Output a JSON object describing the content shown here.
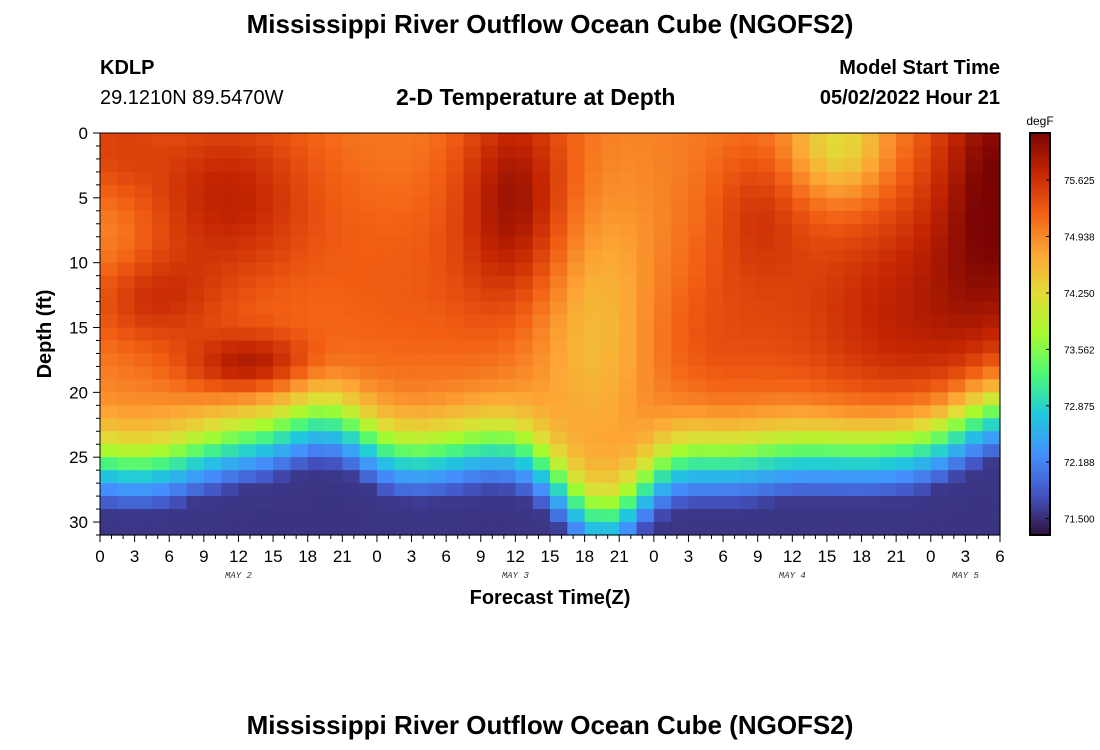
{
  "header": {
    "title": "Mississippi River Outflow Ocean Cube (NGOFS2)",
    "station_id": "KDLP",
    "station_coords": "29.1210N  89.5470W",
    "plot_title": "2-D Temperature at Depth",
    "model_start_label": "Model Start Time",
    "model_start_value": "05/02/2022 Hour 21"
  },
  "footer": {
    "title": "Mississippi River Outflow Ocean Cube (NGOFS2)"
  },
  "chart_data": {
    "type": "heatmap",
    "xlabel": "Forecast Time(Z)",
    "ylabel": "Depth (ft)",
    "x_tick_labels": [
      "0",
      "3",
      "6",
      "9",
      "12",
      "15",
      "18",
      "21",
      "0",
      "3",
      "6",
      "9",
      "12",
      "15",
      "18",
      "21",
      "0",
      "3",
      "6",
      "9",
      "12",
      "15",
      "18",
      "21",
      "0",
      "3",
      "6"
    ],
    "x_range_hours": [
      0,
      78
    ],
    "y_range_ft": [
      0,
      31
    ],
    "y_reversed": true,
    "y_ticks": [
      0,
      5,
      10,
      15,
      20,
      25,
      30
    ],
    "date_labels": [
      {
        "text": "MAY 2",
        "hour": 12
      },
      {
        "text": "MAY 3",
        "hour": 36
      },
      {
        "text": "MAY 4",
        "hour": 60
      },
      {
        "text": "MAY 5",
        "hour": 75
      }
    ],
    "colorbar": {
      "unit": "degF",
      "range": [
        71.3,
        76.2
      ],
      "ticks": [
        "75.625",
        "74.938",
        "74.250",
        "73.562",
        "72.875",
        "72.188",
        "71.500"
      ],
      "colormap": [
        "#30123b",
        "#4454c4",
        "#4490fe",
        "#1fc9dd",
        "#4df877",
        "#a6fb2e",
        "#e1dd37",
        "#fda636",
        "#f26014",
        "#c52602",
        "#7a0403"
      ]
    },
    "grid_resolution": {
      "hours_per_column": 1.5,
      "ft_per_row": 1
    },
    "surface_hot_spots": [
      {
        "hour": 12,
        "depth_ft": 4,
        "value": 75.9
      },
      {
        "hour": 13,
        "depth_ft": 18,
        "value": 75.9
      },
      {
        "hour": 36,
        "depth_ft": 4,
        "value": 76.0
      },
      {
        "hour": 78,
        "depth_ft": 3,
        "value": 76.1
      }
    ],
    "cool_features": [
      {
        "hour": 43,
        "depth_ft": 14,
        "value": 74.7
      },
      {
        "hour": 64,
        "depth_ft": 1,
        "value": 74.8
      }
    ],
    "bottom_value": 71.6
  }
}
